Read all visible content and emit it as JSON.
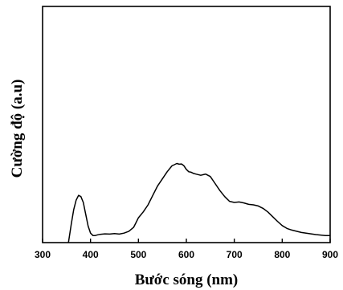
{
  "chart_data": {
    "type": "line",
    "title": "",
    "xlabel": "Bước sóng (nm)",
    "ylabel": "Cường độ (a.u)",
    "xlim": [
      300,
      900
    ],
    "ylim": [
      0,
      1
    ],
    "xticks": [
      300,
      400,
      500,
      600,
      700,
      800,
      900
    ],
    "xtick_labels": [
      "300",
      "400",
      "500",
      "600",
      "700",
      "800",
      "900"
    ],
    "yticks_shown": false,
    "grid": false,
    "series": [
      {
        "x": [
          354,
          360,
          365,
          370,
          375,
          380,
          385,
          390,
          395,
          400,
          405,
          410,
          415,
          420,
          430,
          440,
          450,
          460,
          470,
          480,
          490,
          495,
          500,
          510,
          520,
          530,
          540,
          550,
          560,
          570,
          575,
          580,
          585,
          590,
          595,
          600,
          605,
          610,
          615,
          620,
          630,
          640,
          650,
          660,
          670,
          680,
          690,
          700,
          710,
          720,
          730,
          740,
          750,
          760,
          770,
          780,
          790,
          800,
          810,
          820,
          830,
          840,
          850,
          860,
          870,
          880,
          890,
          900
        ],
        "values": [
          0.0,
          0.08,
          0.14,
          0.18,
          0.2,
          0.195,
          0.17,
          0.12,
          0.07,
          0.04,
          0.03,
          0.03,
          0.033,
          0.035,
          0.037,
          0.036,
          0.038,
          0.036,
          0.04,
          0.048,
          0.065,
          0.085,
          0.105,
          0.13,
          0.16,
          0.2,
          0.24,
          0.27,
          0.3,
          0.325,
          0.33,
          0.335,
          0.332,
          0.333,
          0.325,
          0.31,
          0.3,
          0.298,
          0.293,
          0.29,
          0.285,
          0.29,
          0.28,
          0.25,
          0.22,
          0.195,
          0.175,
          0.17,
          0.172,
          0.168,
          0.162,
          0.16,
          0.155,
          0.145,
          0.13,
          0.11,
          0.09,
          0.072,
          0.06,
          0.053,
          0.048,
          0.043,
          0.04,
          0.037,
          0.034,
          0.032,
          0.03,
          0.03
        ]
      }
    ]
  }
}
